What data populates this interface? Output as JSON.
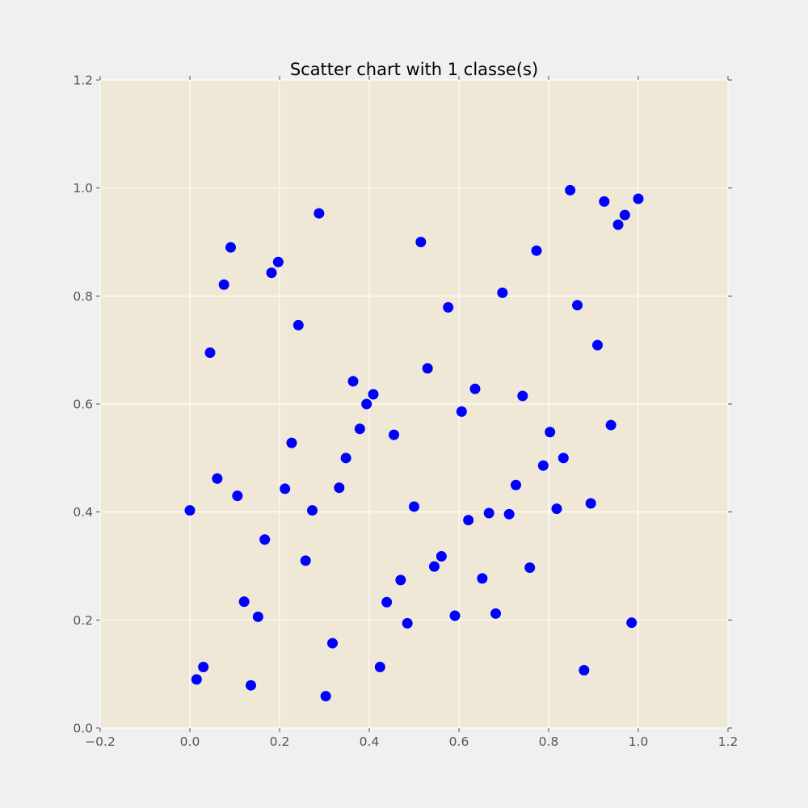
{
  "chart_data": {
    "type": "scatter",
    "title": "Scatter chart with 1 classe(s)",
    "xlabel": "",
    "ylabel": "",
    "xlim": [
      -0.2,
      1.2
    ],
    "ylim": [
      0.0,
      1.2
    ],
    "x_ticks": [
      -0.2,
      0.0,
      0.2,
      0.4,
      0.6,
      0.8,
      1.0,
      1.2
    ],
    "x_tick_labels": [
      "−0.2",
      "0.0",
      "0.2",
      "0.4",
      "0.6",
      "0.8",
      "1.0",
      "1.2"
    ],
    "y_ticks": [
      0.0,
      0.2,
      0.4,
      0.6,
      0.8,
      1.0,
      1.2
    ],
    "y_tick_labels": [
      "0.0",
      "0.2",
      "0.4",
      "0.6",
      "0.8",
      "1.0",
      "1.2"
    ],
    "grid": true,
    "legend": "none",
    "colors": {
      "axes_background": "#efe8d7",
      "figure_background": "#f0f0f0",
      "grid": "#ffffff",
      "tick_label": "#555555",
      "title": "#000000",
      "marker": "#0000ff"
    },
    "series": [
      {
        "color": "#0000ff",
        "points": [
          [
            0.0,
            0.403
          ],
          [
            0.015,
            0.09
          ],
          [
            0.03,
            0.113
          ],
          [
            0.045,
            0.695
          ],
          [
            0.061,
            0.462
          ],
          [
            0.076,
            0.821
          ],
          [
            0.091,
            0.89
          ],
          [
            0.106,
            0.43
          ],
          [
            0.121,
            0.234
          ],
          [
            0.136,
            0.079
          ],
          [
            0.152,
            0.206
          ],
          [
            0.167,
            0.349
          ],
          [
            0.182,
            0.843
          ],
          [
            0.197,
            0.863
          ],
          [
            0.212,
            0.443
          ],
          [
            0.227,
            0.528
          ],
          [
            0.242,
            0.746
          ],
          [
            0.258,
            0.31
          ],
          [
            0.273,
            0.403
          ],
          [
            0.288,
            0.953
          ],
          [
            0.303,
            0.059
          ],
          [
            0.318,
            0.157
          ],
          [
            0.333,
            0.445
          ],
          [
            0.348,
            0.5
          ],
          [
            0.364,
            0.642
          ],
          [
            0.379,
            0.554
          ],
          [
            0.394,
            0.6
          ],
          [
            0.409,
            0.618
          ],
          [
            0.424,
            0.113
          ],
          [
            0.439,
            0.233
          ],
          [
            0.455,
            0.543
          ],
          [
            0.47,
            0.274
          ],
          [
            0.485,
            0.194
          ],
          [
            0.5,
            0.41
          ],
          [
            0.515,
            0.9
          ],
          [
            0.53,
            0.666
          ],
          [
            0.545,
            0.299
          ],
          [
            0.561,
            0.318
          ],
          [
            0.576,
            0.779
          ],
          [
            0.591,
            0.208
          ],
          [
            0.606,
            0.586
          ],
          [
            0.621,
            0.385
          ],
          [
            0.636,
            0.628
          ],
          [
            0.652,
            0.277
          ],
          [
            0.667,
            0.398
          ],
          [
            0.682,
            0.212
          ],
          [
            0.697,
            0.806
          ],
          [
            0.712,
            0.396
          ],
          [
            0.727,
            0.45
          ],
          [
            0.742,
            0.615
          ],
          [
            0.758,
            0.297
          ],
          [
            0.773,
            0.884
          ],
          [
            0.788,
            0.486
          ],
          [
            0.803,
            0.548
          ],
          [
            0.818,
            0.406
          ],
          [
            0.833,
            0.5
          ],
          [
            0.848,
            0.996
          ],
          [
            0.864,
            0.783
          ],
          [
            0.879,
            0.107
          ],
          [
            0.894,
            0.416
          ],
          [
            0.909,
            0.709
          ],
          [
            0.924,
            0.975
          ],
          [
            0.939,
            0.561
          ],
          [
            0.955,
            0.932
          ],
          [
            0.97,
            0.95
          ],
          [
            0.985,
            0.195
          ],
          [
            1.0,
            0.98
          ]
        ]
      }
    ]
  }
}
